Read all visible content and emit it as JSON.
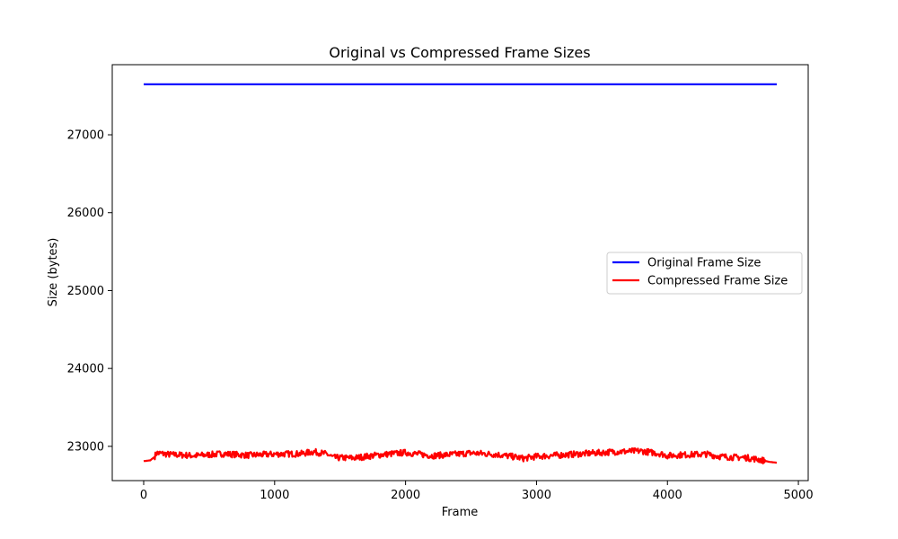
{
  "chart_data": {
    "type": "line",
    "title": "Original vs Compressed Frame Sizes",
    "xlabel": "Frame",
    "ylabel": "Size (bytes)",
    "xlim": [
      -240,
      5075
    ],
    "ylim": [
      22560,
      27900
    ],
    "xticks": [
      0,
      1000,
      2000,
      3000,
      4000,
      5000
    ],
    "xtick_labels": [
      "0",
      "1000",
      "2000",
      "3000",
      "4000",
      "5000"
    ],
    "yticks": [
      23000,
      24000,
      25000,
      26000,
      27000
    ],
    "ytick_labels": [
      "23000",
      "24000",
      "25000",
      "26000",
      "27000"
    ],
    "grid": false,
    "legend_position": "center-right",
    "series": [
      {
        "name": "Original Frame Size",
        "color": "#0000ff",
        "x": [
          0,
          4835
        ],
        "y": [
          27648,
          27648
        ]
      },
      {
        "name": "Compressed Frame Size",
        "color": "#ff0000",
        "noise": 40,
        "x": [
          0,
          50,
          80,
          100,
          200,
          400,
          600,
          800,
          1000,
          1200,
          1300,
          1400,
          1450,
          1600,
          1800,
          2000,
          2200,
          2400,
          2500,
          2700,
          2850,
          2900,
          3000,
          3200,
          3400,
          3600,
          3800,
          3950,
          4000,
          4100,
          4300,
          4400,
          4500,
          4600,
          4700,
          4780,
          4835
        ],
        "y": [
          22810,
          22820,
          22860,
          22915,
          22895,
          22880,
          22905,
          22885,
          22900,
          22905,
          22930,
          22900,
          22855,
          22850,
          22890,
          22920,
          22880,
          22900,
          22915,
          22895,
          22860,
          22845,
          22870,
          22890,
          22910,
          22930,
          22940,
          22905,
          22880,
          22890,
          22900,
          22870,
          22860,
          22855,
          22830,
          22800,
          22790
        ]
      }
    ]
  }
}
